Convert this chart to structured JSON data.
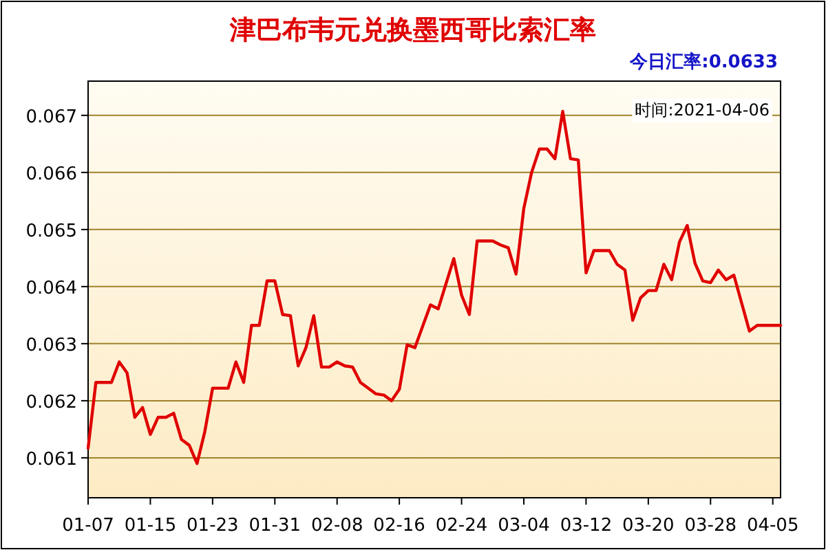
{
  "chart_data": {
    "type": "line",
    "title": "津巴布韦元兑换墨西哥比索汇率",
    "annotations": [
      "今日汇率:0.0633",
      "时间:2021-04-06"
    ],
    "x": [
      "--01-07",
      "--01-08",
      "--01-10",
      "--01-11",
      "--01-12",
      "--01-13",
      "--01-14",
      "--01-15",
      "--01-16",
      "--01-17",
      "--01-18",
      "--01-19",
      "--01-20",
      "--01-21",
      "--01-22",
      "--01-23",
      "--01-25",
      "--01-26",
      "--01-27",
      "--01-28",
      "--01-29",
      "--01-30",
      "--01-31",
      "--02-01",
      "--02-02",
      "--02-03",
      "--02-04",
      "--02-05",
      "--02-06",
      "--02-07",
      "--02-08",
      "--02-09",
      "--02-10",
      "--02-11",
      "--02-13",
      "--02-14",
      "--02-15",
      "--02-16",
      "--02-17",
      "--02-18",
      "--02-20",
      "--02-21",
      "--02-23",
      "--02-24",
      "--02-25",
      "--02-26",
      "--02-28",
      "--03-01",
      "--03-02",
      "--03-03",
      "--03-04",
      "--03-05",
      "--03-06",
      "--03-07",
      "--03-08",
      "--03-09",
      "--03-10",
      "--03-11",
      "--03-12",
      "--03-13",
      "--03-15",
      "--03-16",
      "--03-17",
      "--03-18",
      "--03-19",
      "--03-20",
      "--03-21",
      "--03-22",
      "--03-23",
      "--03-24",
      "--03-25",
      "--03-26",
      "--03-27",
      "--03-28",
      "--03-29",
      "--03-30",
      "--03-31",
      "--04-02",
      "--04-03",
      "--04-06"
    ],
    "series": [
      {
        "color": "#e00000",
        "values": [
          0.06117,
          0.06232,
          0.06232,
          0.06268,
          0.06249,
          0.06171,
          0.06188,
          0.06141,
          0.06171,
          0.06171,
          0.06178,
          0.06132,
          0.06122,
          0.0609,
          0.06146,
          0.06222,
          0.06222,
          0.06268,
          0.06232,
          0.06332,
          0.06332,
          0.0641,
          0.0641,
          0.06351,
          0.06349,
          0.06261,
          0.06293,
          0.06349,
          0.06259,
          0.06259,
          0.06268,
          0.06261,
          0.06259,
          0.06232,
          0.06212,
          0.0621,
          0.062,
          0.0622,
          0.06298,
          0.06293,
          0.06368,
          0.06361,
          0.06449,
          0.06385,
          0.06351,
          0.0648,
          0.0648,
          0.06473,
          0.06468,
          0.06422,
          0.06537,
          0.066,
          0.06641,
          0.06641,
          0.06624,
          0.06707,
          0.06624,
          0.06622,
          0.06424,
          0.06463,
          0.06463,
          0.06439,
          0.06429,
          0.06341,
          0.0638,
          0.06393,
          0.06393,
          0.06439,
          0.06412,
          0.06478,
          0.06507,
          0.06441,
          0.0641,
          0.06407,
          0.06429,
          0.06412,
          0.0642,
          0.06322,
          0.06332,
          0.06332
        ]
      }
    ],
    "xlim": [
      "--01-07",
      "--04-06"
    ],
    "xticks": [
      {
        "value": "--01-07",
        "label": "01-07"
      },
      {
        "value": "--01-15",
        "label": "01-15"
      },
      {
        "value": "--01-23",
        "label": "01-23"
      },
      {
        "value": "--01-31",
        "label": "01-31"
      },
      {
        "value": "--02-08",
        "label": "02-08"
      },
      {
        "value": "--02-16",
        "label": "02-16"
      },
      {
        "value": "--02-24",
        "label": "02-24"
      },
      {
        "value": "--03-04",
        "label": "03-04"
      },
      {
        "value": "--03-12",
        "label": "03-12"
      },
      {
        "value": "--03-20",
        "label": "03-20"
      },
      {
        "value": "--03-28",
        "label": "03-28"
      },
      {
        "value": "--04-05",
        "label": "04-05"
      }
    ],
    "ylim": [
      0.0603,
      0.0676
    ],
    "yticks": [
      0.061,
      0.062,
      0.063,
      0.064,
      0.065,
      0.066,
      0.067
    ],
    "grid": "y",
    "marker": "none",
    "line_style": "solid"
  }
}
